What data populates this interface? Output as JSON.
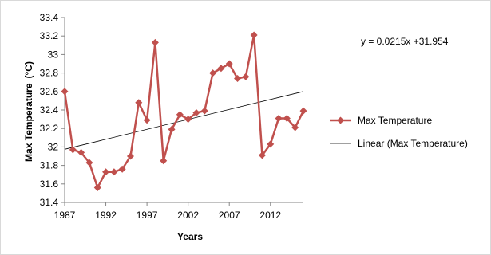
{
  "chart_data": {
    "type": "line",
    "xlabel": "Years",
    "ylabel": "Max Temperature",
    "ylabel_unit": "(°C)",
    "xlim": [
      1987,
      2016
    ],
    "ylim": [
      31.4,
      33.4
    ],
    "x_ticks": [
      "1987",
      "1992",
      "1997",
      "2002",
      "2007",
      "2012"
    ],
    "y_ticks": [
      "31.4",
      "31.6",
      "31.8",
      "32",
      "32.2",
      "32.4",
      "32.6",
      "32.8",
      "33",
      "33.2",
      "33.4"
    ],
    "grid": false,
    "legend_position": "right",
    "series": [
      {
        "name": "Max Temperature",
        "color": "#c0504d",
        "marker": "diamond",
        "x": [
          1987,
          1988,
          1989,
          1990,
          1991,
          1992,
          1993,
          1994,
          1995,
          1996,
          1997,
          1998,
          1999,
          2000,
          2001,
          2002,
          2003,
          2004,
          2005,
          2006,
          2007,
          2008,
          2009,
          2010,
          2011,
          2012,
          2013,
          2014,
          2015,
          2016
        ],
        "values": [
          32.6,
          31.97,
          31.94,
          31.83,
          31.56,
          31.73,
          31.73,
          31.76,
          31.9,
          32.48,
          32.29,
          33.13,
          31.85,
          32.19,
          32.35,
          32.3,
          32.37,
          32.39,
          32.8,
          32.85,
          32.9,
          32.74,
          32.76,
          33.21,
          31.91,
          32.03,
          32.31,
          32.31,
          32.21,
          32.39
        ]
      },
      {
        "name": "Linear (Max Temperature)",
        "type": "trendline",
        "color": "#000000",
        "x": [
          1987,
          2016
        ],
        "values": [
          31.975,
          32.6
        ]
      }
    ],
    "annotations": [
      "y = 0.0215x +31.954"
    ]
  }
}
